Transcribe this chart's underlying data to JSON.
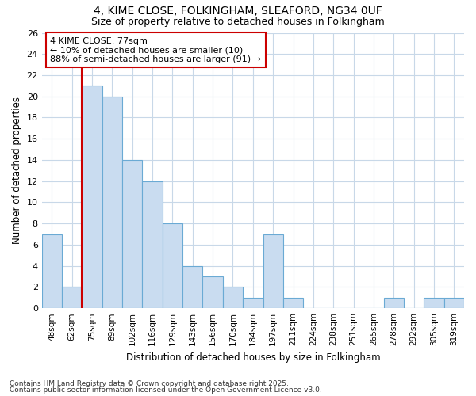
{
  "title1": "4, KIME CLOSE, FOLKINGHAM, SLEAFORD, NG34 0UF",
  "title2": "Size of property relative to detached houses in Folkingham",
  "xlabel": "Distribution of detached houses by size in Folkingham",
  "ylabel": "Number of detached properties",
  "categories": [
    "48sqm",
    "62sqm",
    "75sqm",
    "89sqm",
    "102sqm",
    "116sqm",
    "129sqm",
    "143sqm",
    "156sqm",
    "170sqm",
    "184sqm",
    "197sqm",
    "211sqm",
    "224sqm",
    "238sqm",
    "251sqm",
    "265sqm",
    "278sqm",
    "292sqm",
    "305sqm",
    "319sqm"
  ],
  "values": [
    7,
    2,
    21,
    20,
    14,
    12,
    8,
    4,
    3,
    2,
    1,
    7,
    1,
    0,
    0,
    0,
    0,
    1,
    0,
    1,
    1
  ],
  "bar_color": "#c9dcf0",
  "bar_edge_color": "#6aaad4",
  "red_line_index": 2,
  "red_line_color": "#cc0000",
  "annotation_title": "4 KIME CLOSE: 77sqm",
  "annotation_line1": "← 10% of detached houses are smaller (10)",
  "annotation_line2": "88% of semi-detached houses are larger (91) →",
  "annotation_box_color": "#ffffff",
  "annotation_edge_color": "#cc0000",
  "ylim": [
    0,
    26
  ],
  "yticks": [
    0,
    2,
    4,
    6,
    8,
    10,
    12,
    14,
    16,
    18,
    20,
    22,
    24,
    26
  ],
  "footer1": "Contains HM Land Registry data © Crown copyright and database right 2025.",
  "footer2": "Contains public sector information licensed under the Open Government Licence v3.0.",
  "bg_color": "#ffffff",
  "plot_bg_color": "#ffffff",
  "grid_color": "#c8d8e8"
}
